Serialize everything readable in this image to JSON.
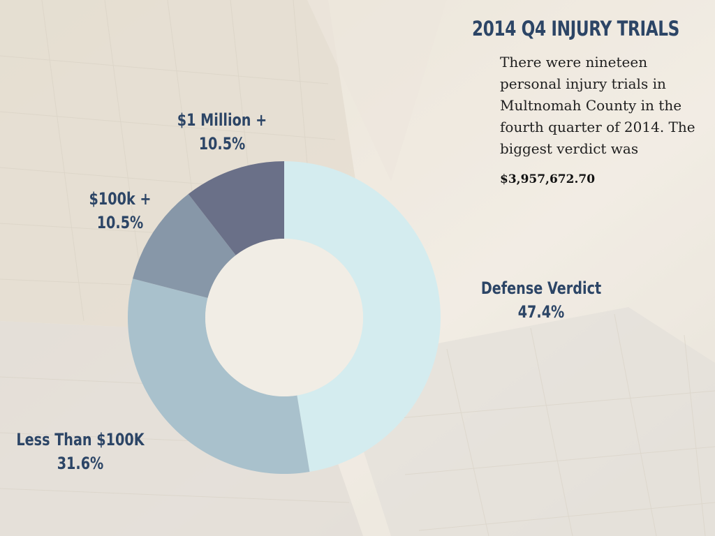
{
  "header": {
    "title": "2014 Q4 INJURY TRIALS",
    "description": "There were nineteen personal injury trials in Multnomah County in the fourth quarter of 2014. The biggest verdict was",
    "amount": "$3,957,672.70"
  },
  "chart_data": {
    "type": "pie",
    "variant": "donut",
    "title": "2014 Q4 INJURY TRIALS",
    "categories": [
      "Defense Verdict",
      "Less Than $100K",
      "$100k +",
      "$1 Million +"
    ],
    "values": [
      47.4,
      31.6,
      10.5,
      10.5
    ],
    "labels": [
      "47.4%",
      "31.6%",
      "10.5%",
      "10.5%"
    ],
    "colors": [
      "#d4ecef",
      "#a9c1cc",
      "#8797a8",
      "#6a7088"
    ]
  }
}
